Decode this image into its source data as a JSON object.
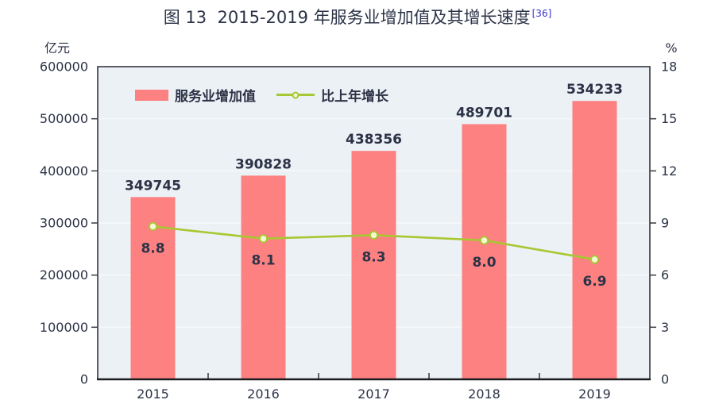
{
  "figure": {
    "title": "图 13  2015-2019 年服务业增加值及其增长速度",
    "title_footnote": "[36]"
  },
  "chart_data": {
    "type": "bar",
    "subtype": "bar-line-combo",
    "title": "图 13  2015-2019 年服务业增加值及其增长速度",
    "categories": [
      "2015",
      "2016",
      "2017",
      "2018",
      "2019"
    ],
    "series": [
      {
        "name": "服务业增加值",
        "type": "bar",
        "axis": "left",
        "unit": "亿元",
        "values": [
          349745,
          390828,
          438356,
          489701,
          534233
        ],
        "labels": [
          "349745",
          "390828",
          "438356",
          "489701",
          "534233"
        ],
        "color": "#fd8181"
      },
      {
        "name": "比上年增长",
        "type": "line",
        "axis": "right",
        "unit": "%",
        "values": [
          8.8,
          8.1,
          8.3,
          8.0,
          6.9
        ],
        "labels": [
          "8.8",
          "8.1",
          "8.3",
          "8.0",
          "6.9"
        ],
        "color": "#a6c832",
        "marker_fill": "#f5f9cf"
      }
    ],
    "left_axis": {
      "label": "亿元",
      "min": 0,
      "max": 600000,
      "step": 100000,
      "tick_labels": [
        "0",
        "100000",
        "200000",
        "300000",
        "400000",
        "500000",
        "600000"
      ]
    },
    "right_axis": {
      "label": "%",
      "min": 0,
      "max": 18,
      "step": 3,
      "tick_labels": [
        "0",
        "3",
        "6",
        "9",
        "12",
        "15",
        "18"
      ]
    },
    "legend_position": "top-inside",
    "grid": true,
    "colors": {
      "plot_bg": "#ecf1f5",
      "gridline": "#f7fafb",
      "frame": "#34383f",
      "axis_line": "#1b1d20",
      "text": "#2c3347",
      "footnote_link": "#3333cc"
    }
  }
}
